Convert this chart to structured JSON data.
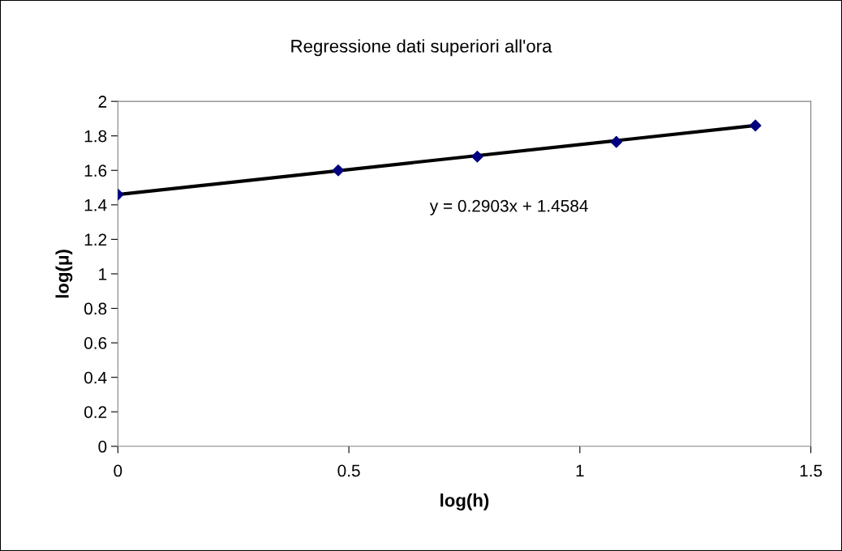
{
  "chart_data": {
    "type": "scatter",
    "title": "Regressione dati superiori all'ora",
    "xlabel": "log(h)",
    "ylabel": "log(μ)",
    "x": [
      0,
      0.477,
      0.778,
      1.079,
      1.38
    ],
    "series": [
      {
        "color": "#000080",
        "marker": "diamond",
        "values": [
          1.46,
          1.6,
          1.68,
          1.765,
          1.86
        ]
      },
      {
        "type": "line",
        "color": "#000000",
        "marker": "none",
        "x": [
          0,
          1.38
        ],
        "values": [
          1.46,
          1.86
        ]
      }
    ],
    "annotations": [
      "y = 0.2903x + 1.4584"
    ],
    "xlim": [
      0,
      1.5
    ],
    "xticks": [
      0,
      0.5,
      1,
      1.5
    ],
    "ylim": [
      0,
      2
    ],
    "yticks": [
      0,
      0.2,
      0.4,
      0.6,
      0.8,
      1,
      1.2,
      1.4,
      1.6,
      1.8,
      2
    ],
    "grid": false,
    "legend": false
  }
}
